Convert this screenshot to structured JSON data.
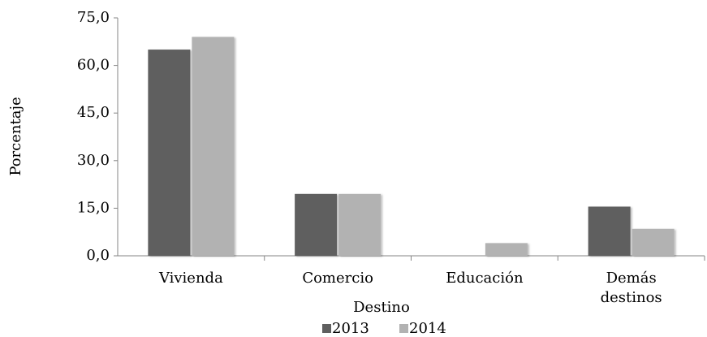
{
  "chart_data": {
    "type": "bar",
    "x_label": "Destino",
    "y_label": "Porcentaje",
    "categories": [
      "Vivienda",
      "Comercio",
      "Educación",
      "Demás destinos"
    ],
    "series": [
      {
        "name": "2013",
        "color": "#5f5f5f",
        "values": [
          65.0,
          19.5,
          0.0,
          15.5
        ]
      },
      {
        "name": "2014",
        "color": "#b2b2b2",
        "values": [
          69.0,
          19.5,
          4.0,
          8.5
        ]
      }
    ],
    "ylim": [
      0,
      75
    ],
    "yticks": [
      {
        "value": 0,
        "label": "0,0"
      },
      {
        "value": 15,
        "label": "15,0"
      },
      {
        "value": 30,
        "label": "30,0"
      },
      {
        "value": 45,
        "label": "45,0"
      },
      {
        "value": 60,
        "label": "60,0"
      },
      {
        "value": 75,
        "label": "75,0"
      }
    ],
    "grid": false,
    "legend": "bottom"
  }
}
